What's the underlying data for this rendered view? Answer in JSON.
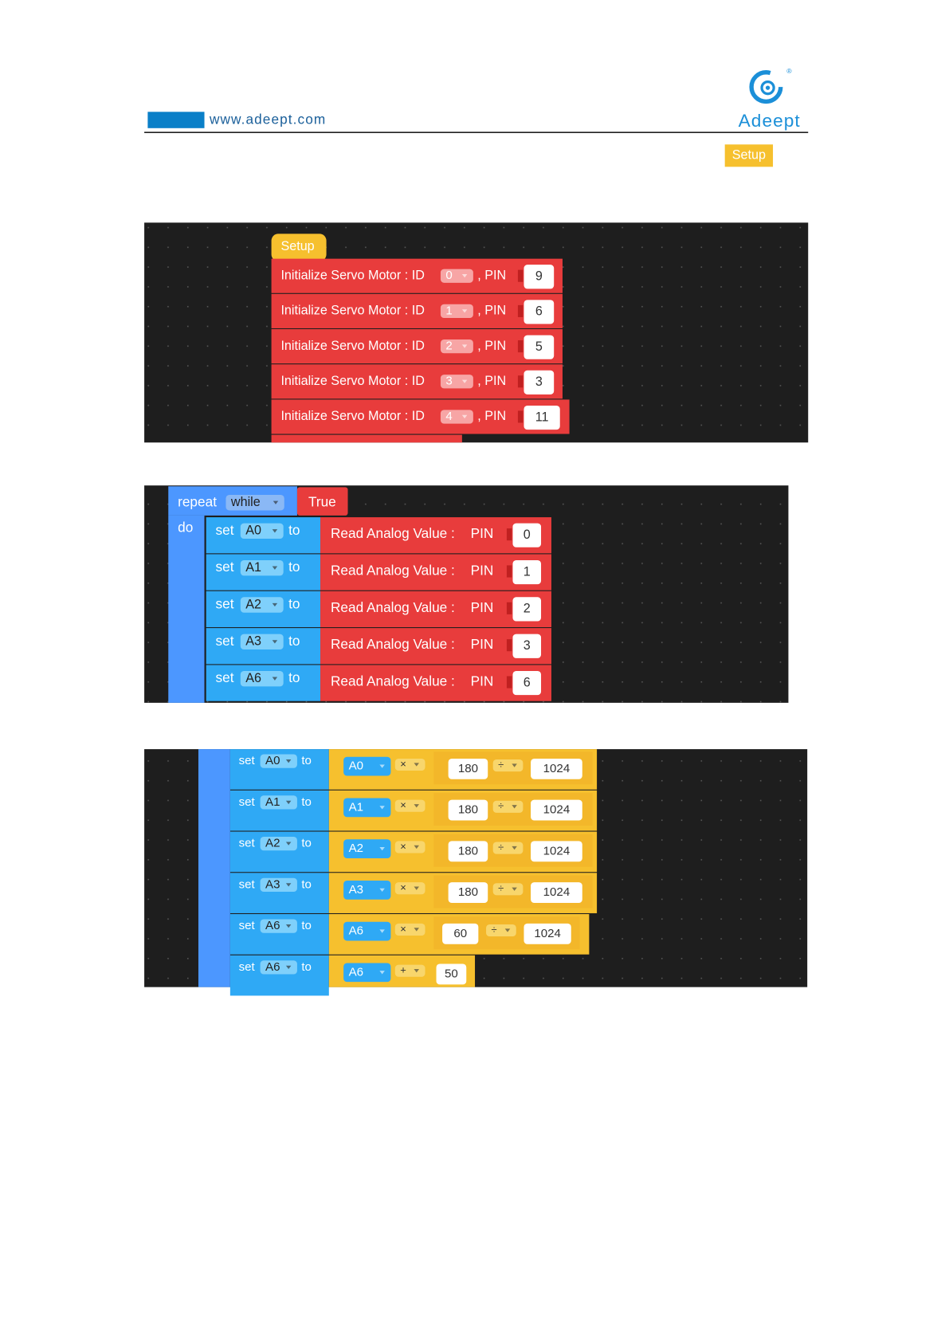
{
  "header": {
    "url": "www.adeept.com",
    "brand": "Adeept",
    "registered": "®"
  },
  "setup_label": "Setup",
  "panel1": {
    "hat": "Setup",
    "blocks": [
      {
        "text": "Initialize Servo Motor : ID",
        "id": "0",
        "pin_label": ", PIN",
        "pin": 9
      },
      {
        "text": "Initialize Servo Motor : ID",
        "id": "1",
        "pin_label": ", PIN",
        "pin": 6
      },
      {
        "text": "Initialize Servo Motor : ID",
        "id": "2",
        "pin_label": ", PIN",
        "pin": 5
      },
      {
        "text": "Initialize Servo Motor : ID",
        "id": "3",
        "pin_label": ", PIN",
        "pin": 3
      },
      {
        "text": "Initialize Servo Motor : ID",
        "id": "4",
        "pin_label": ", PIN",
        "pin": 11
      }
    ]
  },
  "panel2": {
    "repeat": "repeat",
    "mode": "while",
    "condition": "True",
    "do": "do",
    "rows": [
      {
        "set": "set",
        "var": "A0",
        "to": "to",
        "read": "Read Analog Value :",
        "pin_label": "PIN",
        "pin": 0
      },
      {
        "set": "set",
        "var": "A1",
        "to": "to",
        "read": "Read Analog Value :",
        "pin_label": "PIN",
        "pin": 1
      },
      {
        "set": "set",
        "var": "A2",
        "to": "to",
        "read": "Read Analog Value :",
        "pin_label": "PIN",
        "pin": 2
      },
      {
        "set": "set",
        "var": "A3",
        "to": "to",
        "read": "Read Analog Value :",
        "pin_label": "PIN",
        "pin": 3
      },
      {
        "set": "set",
        "var": "A6",
        "to": "to",
        "read": "Read Analog Value :",
        "pin_label": "PIN",
        "pin": 6
      }
    ]
  },
  "panel3": {
    "rows": [
      {
        "set": "set",
        "var": "A0",
        "to": "to",
        "operand": "A0",
        "op": "×",
        "a": 180,
        "op2": "÷",
        "b": 1024
      },
      {
        "set": "set",
        "var": "A1",
        "to": "to",
        "operand": "A1",
        "op": "×",
        "a": 180,
        "op2": "÷",
        "b": 1024
      },
      {
        "set": "set",
        "var": "A2",
        "to": "to",
        "operand": "A2",
        "op": "×",
        "a": 180,
        "op2": "÷",
        "b": 1024
      },
      {
        "set": "set",
        "var": "A3",
        "to": "to",
        "operand": "A3",
        "op": "×",
        "a": 180,
        "op2": "÷",
        "b": 1024
      },
      {
        "set": "set",
        "var": "A6",
        "to": "to",
        "operand": "A6",
        "op": "×",
        "a": 60,
        "op2": "÷",
        "b": 1024
      },
      {
        "set": "set",
        "var": "A6",
        "to": "to",
        "operand": "A6",
        "op": "+",
        "a": 50
      }
    ]
  }
}
